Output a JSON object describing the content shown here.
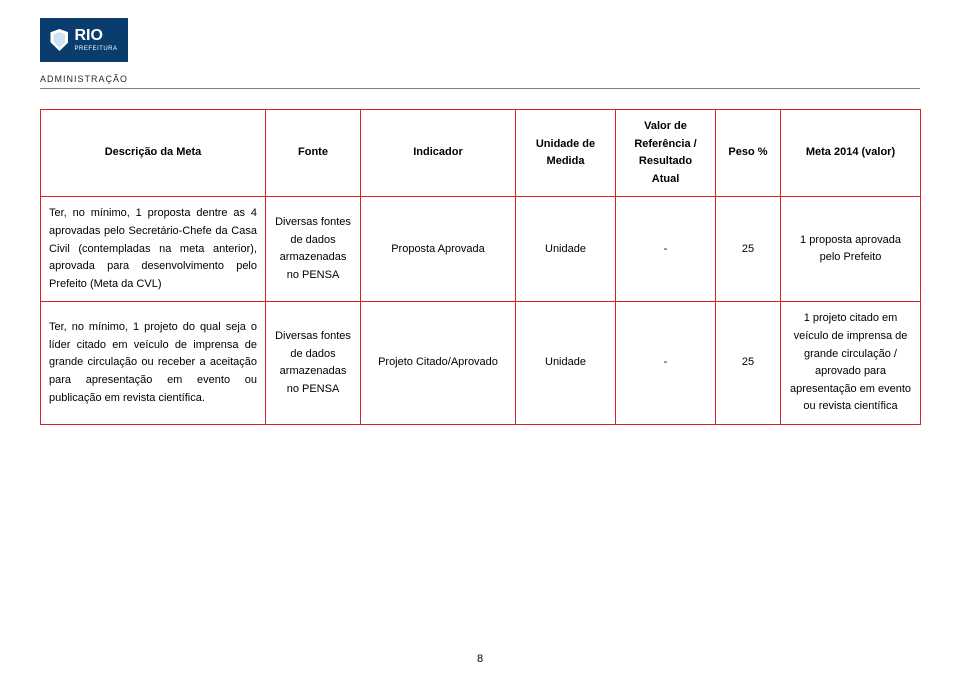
{
  "logo": {
    "title": "RIO",
    "subtitle": "PREFEITURA",
    "admin": "ADMINISTRAÇÃO"
  },
  "table": {
    "border_color": "#d61f26",
    "headers": {
      "descricao": "Descrição da Meta",
      "fonte": "Fonte",
      "indicador": "Indicador",
      "unidade_medida": "Unidade de Medida",
      "referencia": "Valor de Referência / Resultado Atual",
      "peso": "Peso %",
      "meta2014": "Meta 2014 (valor)"
    },
    "rows": [
      {
        "descricao": "Ter, no mínimo, 1 proposta dentre as 4 aprovadas pelo Secretário-Chefe da Casa Civil (contempladas na meta anterior), aprovada para desenvolvimento pelo Prefeito (Meta da CVL)",
        "fonte": "Diversas fontes de dados armazenadas no PENSA",
        "indicador": "Proposta Aprovada",
        "unidade_medida": "Unidade",
        "referencia": "-",
        "peso": "25",
        "meta2014": "1 proposta aprovada pelo Prefeito"
      },
      {
        "descricao": "Ter, no mínimo, 1 projeto do qual seja o líder citado em veículo de imprensa de grande circulação ou receber a aceitação para apresentação em evento ou publicação em revista científica.",
        "fonte": "Diversas fontes de dados armazenadas no PENSA",
        "indicador": "Projeto Citado/Aprovado",
        "unidade_medida": "Unidade",
        "referencia": "-",
        "peso": "25",
        "meta2014": "1 projeto citado em veículo de imprensa de grande circulação / aprovado para apresentação em evento ou revista científica"
      }
    ]
  },
  "page_number": "8"
}
